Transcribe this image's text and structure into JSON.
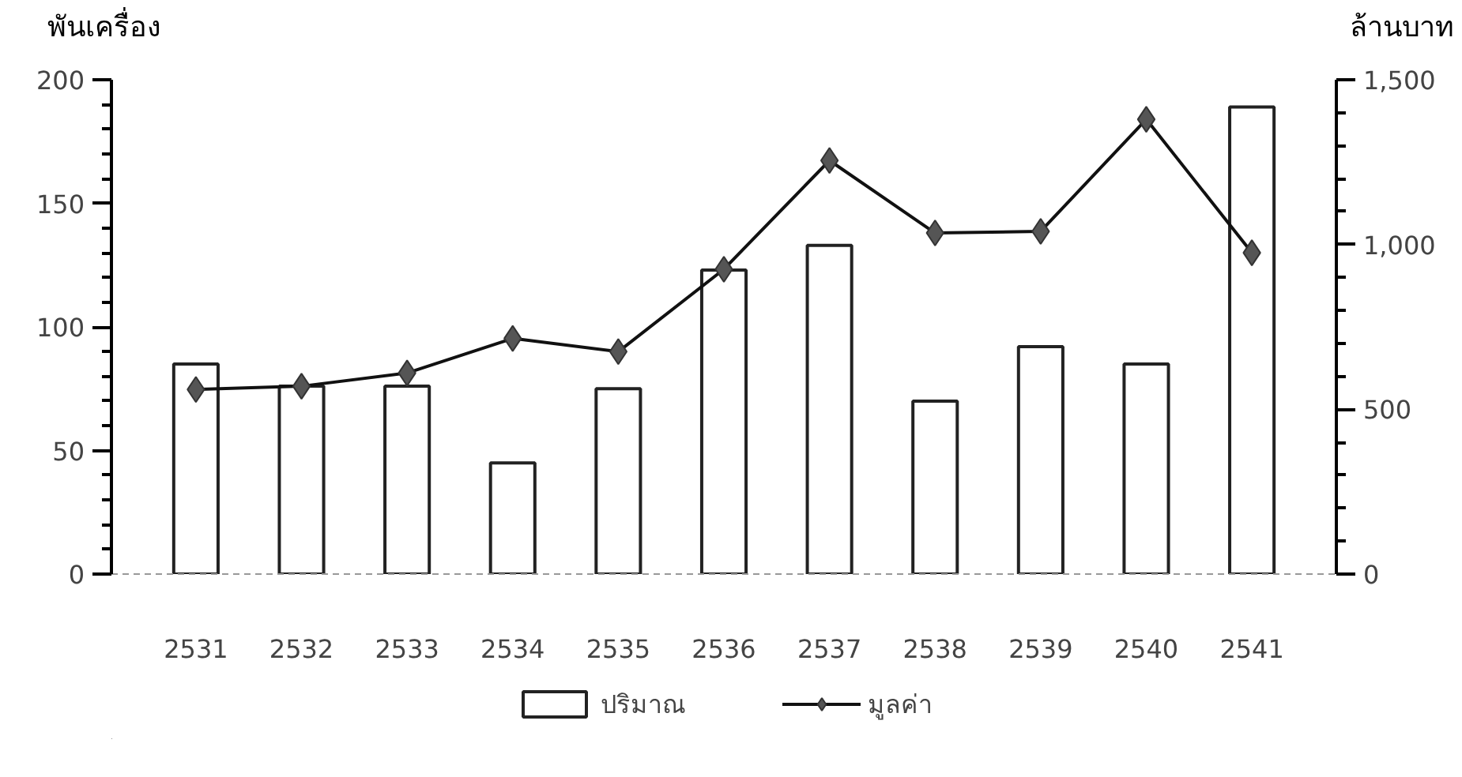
{
  "chart_data": {
    "type": "bar",
    "ylabel": "พันเครื่อง",
    "y2label": "ล้านบาท",
    "categories": [
      "2531",
      "2532",
      "2533",
      "2534",
      "2535",
      "2536",
      "2537",
      "2538",
      "2539",
      "2540",
      "2541"
    ],
    "series": [
      {
        "name": "ปริมาณ",
        "color": "#ffffff",
        "values": [
          85,
          76,
          76,
          45,
          75,
          123,
          133,
          70,
          92,
          85,
          189
        ]
      },
      {
        "name": "มูลค่า",
        "type": "line",
        "axis": "y2",
        "color": "#555555",
        "marker": "diamond",
        "values": [
          560,
          570,
          610,
          715,
          675,
          925,
          1255,
          1035,
          1040,
          1380,
          975
        ]
      }
    ],
    "ylim": [
      0,
      200
    ],
    "yticks": [
      0,
      {
        "value": 10,
        "label": null
      },
      {
        "value": 20,
        "label": null
      },
      {
        "value": 30,
        "label": null
      },
      {
        "value": 40,
        "label": null
      },
      50,
      {
        "value": 60,
        "label": null
      },
      {
        "value": 70,
        "label": null
      },
      {
        "value": 80,
        "label": null
      },
      {
        "value": 90,
        "label": null
      },
      100,
      {
        "value": 110,
        "label": null
      },
      {
        "value": 120,
        "label": null
      },
      {
        "value": 130,
        "label": null
      },
      {
        "value": 140,
        "label": null
      },
      150,
      {
        "value": 160,
        "label": null
      },
      {
        "value": 170,
        "label": null
      },
      {
        "value": 180,
        "label": null
      },
      {
        "value": 190,
        "label": null
      },
      200
    ],
    "y2lim": [
      0,
      1500
    ],
    "y2ticks": [
      {
        "value": 0,
        "label": "0"
      },
      {
        "value": 100,
        "label": null
      },
      {
        "value": 200,
        "label": null
      },
      {
        "value": 300,
        "label": null
      },
      {
        "value": 400,
        "label": null
      },
      {
        "value": 500,
        "label": "500"
      },
      {
        "value": 600,
        "label": null
      },
      {
        "value": 700,
        "label": null
      },
      {
        "value": 800,
        "label": null
      },
      {
        "value": 900,
        "label": null
      },
      {
        "value": 1000,
        "label": "1,000"
      },
      {
        "value": 1100,
        "label": null
      },
      {
        "value": 1200,
        "label": null
      },
      {
        "value": 1300,
        "label": null
      },
      {
        "value": 1400,
        "label": null
      },
      {
        "value": 1500,
        "label": "1,500"
      }
    ],
    "grid": false,
    "legend": "bottom"
  }
}
